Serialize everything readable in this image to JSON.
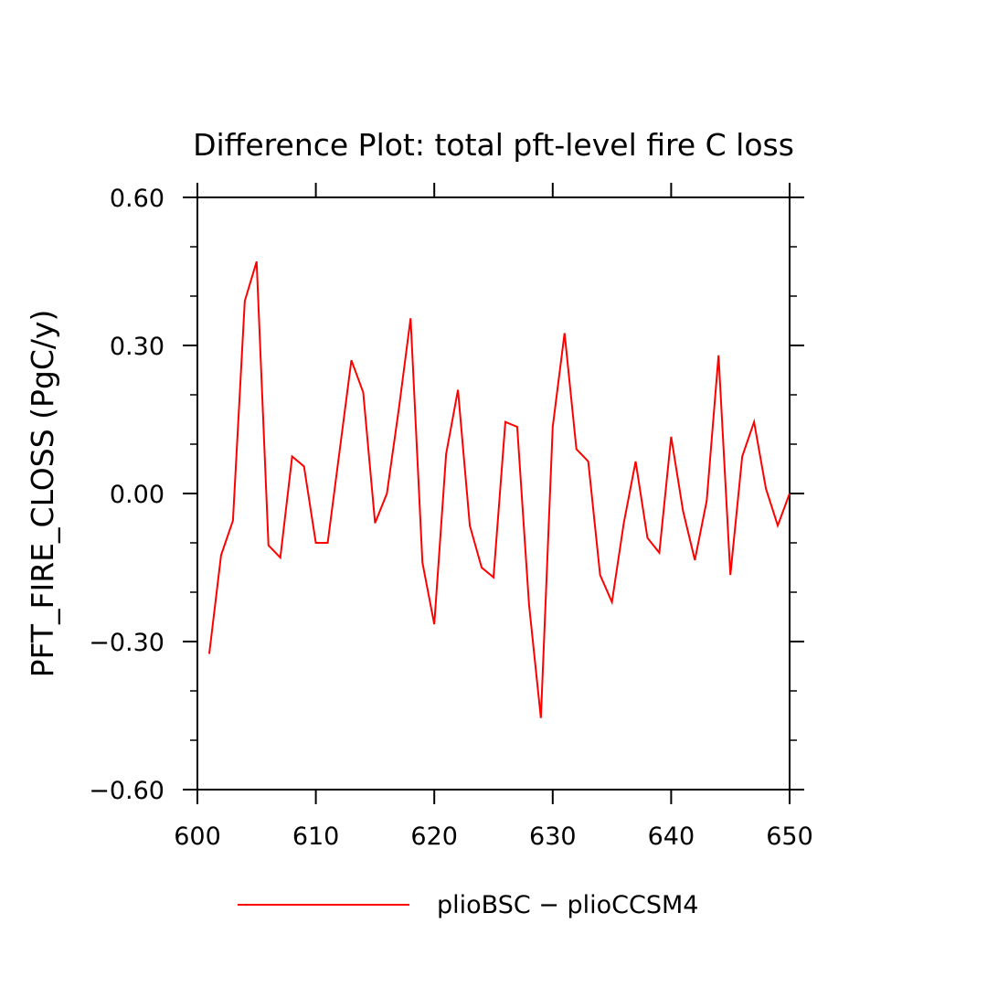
{
  "chart_data": {
    "type": "line",
    "title": "Difference Plot: total pft-level fire C loss",
    "xlabel": "",
    "ylabel": "PFT_FIRE_CLOSS  (PgC/y)",
    "xlim": [
      600,
      650
    ],
    "ylim": [
      -0.6,
      0.6
    ],
    "x_ticks": [
      600,
      610,
      620,
      630,
      640,
      650
    ],
    "x_tick_labels": [
      "600",
      "610",
      "620",
      "630",
      "640",
      "650"
    ],
    "y_ticks": [
      -0.6,
      -0.3,
      0.0,
      0.3,
      0.6
    ],
    "y_tick_labels": [
      "−0.60",
      "−0.30",
      "0.00",
      "0.30",
      "0.60"
    ],
    "y_minor_step": 0.1,
    "grid": false,
    "legend_position": "bottom",
    "series": [
      {
        "name": "plioBSC − plioCCSM4",
        "color": "#ff0000",
        "x": [
          601,
          602,
          603,
          604,
          605,
          606,
          607,
          608,
          609,
          610,
          611,
          612,
          613,
          614,
          615,
          616,
          617,
          618,
          619,
          620,
          621,
          622,
          623,
          624,
          625,
          626,
          627,
          628,
          629,
          630,
          631,
          632,
          633,
          634,
          635,
          636,
          637,
          638,
          639,
          640,
          641,
          642,
          643,
          644,
          645,
          646,
          647,
          648,
          649,
          650
        ],
        "values": [
          -0.325,
          -0.125,
          -0.055,
          0.39,
          0.47,
          -0.105,
          -0.13,
          0.075,
          0.055,
          -0.1,
          -0.1,
          0.085,
          0.27,
          0.205,
          -0.06,
          0.0,
          0.17,
          0.355,
          -0.14,
          -0.265,
          0.08,
          0.21,
          -0.065,
          -0.15,
          -0.17,
          0.145,
          0.135,
          -0.225,
          -0.455,
          0.135,
          0.325,
          0.09,
          0.065,
          -0.165,
          -0.22,
          -0.06,
          0.065,
          -0.09,
          -0.12,
          0.115,
          -0.035,
          -0.135,
          -0.015,
          0.28,
          -0.165,
          0.075,
          0.145,
          0.01,
          -0.065,
          0.0
        ]
      }
    ]
  }
}
